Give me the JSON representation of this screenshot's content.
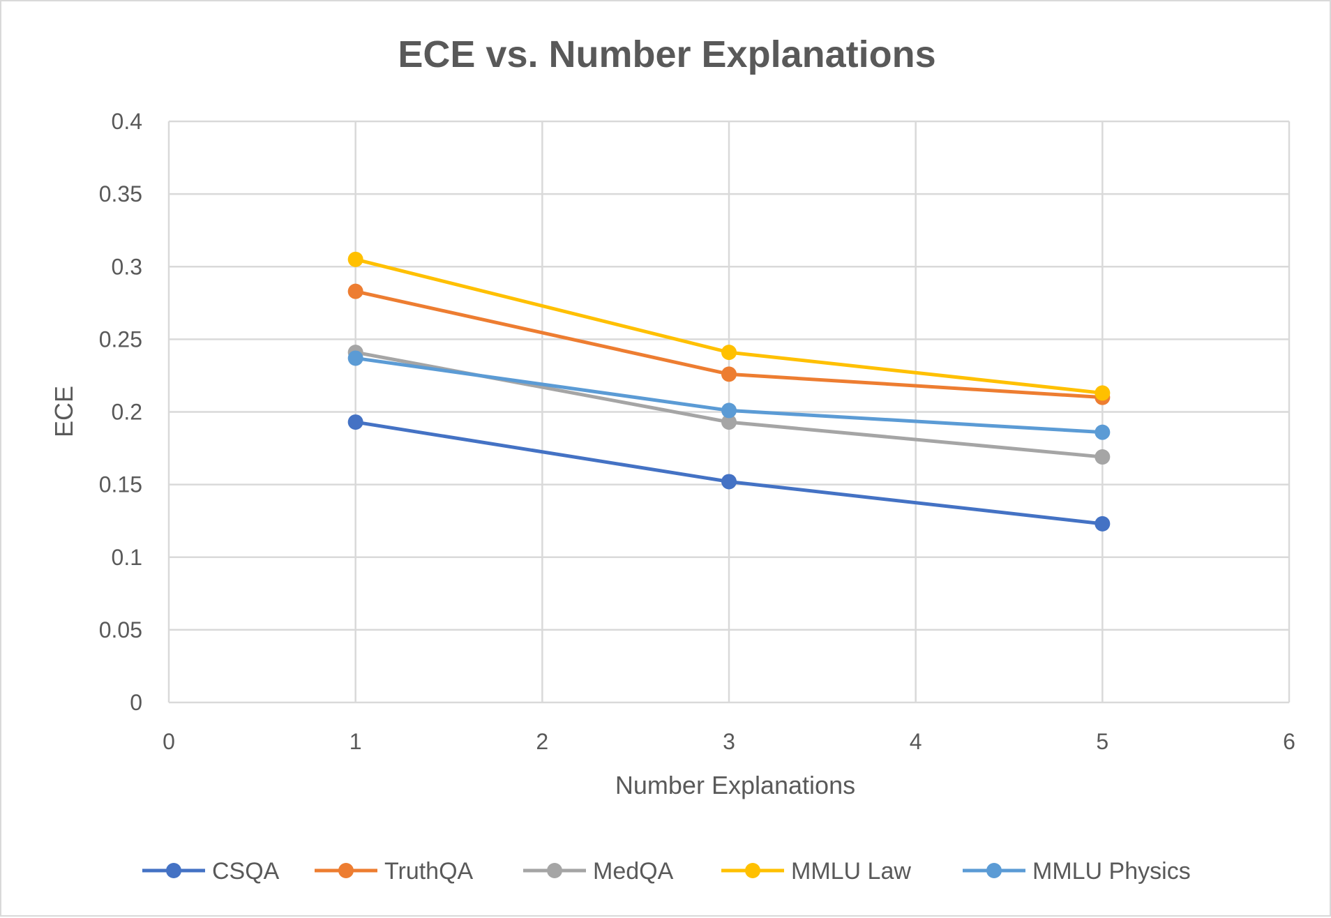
{
  "chart_data": {
    "type": "line",
    "title": "ECE vs. Number Explanations",
    "xlabel": "Number Explanations",
    "ylabel": "ECE",
    "xlim": [
      0,
      6
    ],
    "ylim": [
      0,
      0.4
    ],
    "xticks": [
      0,
      1,
      2,
      3,
      4,
      5,
      6
    ],
    "yticks": [
      0,
      0.05,
      0.1,
      0.15,
      0.2,
      0.25,
      0.3,
      0.35,
      0.4
    ],
    "xtick_labels": [
      "0",
      "1",
      "2",
      "3",
      "4",
      "5",
      "6"
    ],
    "ytick_labels": [
      "0",
      "0.05",
      "0.1",
      "0.15",
      "0.2",
      "0.25",
      "0.3",
      "0.35",
      "0.4"
    ],
    "grid": true,
    "legend_position": "bottom",
    "x": [
      1,
      3,
      5
    ],
    "series": [
      {
        "name": "CSQA",
        "color": "#4472C4",
        "values": [
          0.193,
          0.152,
          0.123
        ]
      },
      {
        "name": "TruthQA",
        "color": "#ED7D31",
        "values": [
          0.283,
          0.226,
          0.21
        ]
      },
      {
        "name": "MedQA",
        "color": "#A5A5A5",
        "values": [
          0.241,
          0.193,
          0.169
        ]
      },
      {
        "name": "MMLU Law",
        "color": "#FFC000",
        "values": [
          0.305,
          0.241,
          0.213
        ]
      },
      {
        "name": "MMLU Physics",
        "color": "#5B9BD5",
        "values": [
          0.237,
          0.201,
          0.186
        ]
      }
    ]
  }
}
